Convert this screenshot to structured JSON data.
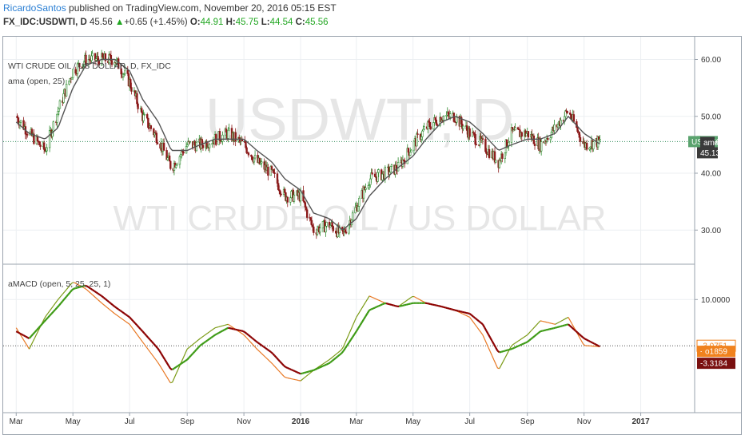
{
  "header": {
    "author": "RicardoSantos",
    "published": " published on TradingView.com, November 20, 2016 05:15 EST",
    "symbol": "FX_IDC:USDWTI, D",
    "last": "45.56",
    "change": "+0.65 (+1.45%)",
    "open_label": "O:",
    "open": "44.91",
    "high_label": "H:",
    "high": "45.75",
    "low_label": "L:",
    "low": "44.54",
    "close_label": "C:",
    "close": "45.56"
  },
  "colors": {
    "up_candle": "#2e8b2e",
    "down_candle": "#8b1a1a",
    "ama_line": "#555555",
    "macd_green": "#3c9a14",
    "macd_red": "#8b0000",
    "macd_orange": "#e87722",
    "macd_olive": "#7a9a14",
    "current_price_line": "#2e8b57",
    "label_green": "#5aa36e",
    "label_dark": "#3a3a3a",
    "label_orange": "#f0821e",
    "label_darkred": "#7a1010"
  },
  "watermark": {
    "symbol": "USDWTI, D",
    "description": "WTI CRUDE OIL / US DOLLAR"
  },
  "chart_data": [
    {
      "type": "candlestick",
      "title": "WTI CRUDE OIL / US DOLLAR, D, FX_IDC",
      "indicator_label": "ama (open, 25)",
      "ylim": [
        24,
        64
      ],
      "y_ticks": [
        "60.00",
        "50.00",
        "40.00",
        "30.00"
      ],
      "x": [
        "2015-03-01",
        "2015-03-15",
        "2015-04-01",
        "2015-04-15",
        "2015-05-01",
        "2015-05-15",
        "2015-06-01",
        "2015-06-15",
        "2015-07-01",
        "2015-07-15",
        "2015-08-01",
        "2015-08-15",
        "2015-09-01",
        "2015-09-15",
        "2015-10-01",
        "2015-10-15",
        "2015-11-01",
        "2015-11-15",
        "2015-12-01",
        "2015-12-15",
        "2016-01-01",
        "2016-01-15",
        "2016-02-01",
        "2016-02-15",
        "2016-03-01",
        "2016-03-15",
        "2016-04-01",
        "2016-04-15",
        "2016-05-01",
        "2016-05-15",
        "2016-06-01",
        "2016-06-15",
        "2016-07-01",
        "2016-07-15",
        "2016-08-01",
        "2016-08-15",
        "2016-09-01",
        "2016-09-15",
        "2016-10-01",
        "2016-10-15",
        "2016-11-01",
        "2016-11-18"
      ],
      "price": [
        50,
        47,
        44,
        51,
        58,
        60,
        60,
        60,
        56,
        50,
        46,
        41,
        45,
        45,
        46,
        47,
        45,
        42,
        40,
        36,
        36,
        30,
        31,
        29,
        34,
        39,
        40,
        41,
        45,
        48,
        50,
        50,
        47,
        45,
        42,
        47,
        47,
        45,
        48,
        51,
        45,
        45.56
      ],
      "ama": [
        49,
        47,
        46,
        48,
        55,
        59,
        60,
        60,
        58,
        53,
        49,
        44,
        44,
        45,
        46,
        46,
        46,
        44,
        42,
        39,
        37,
        33,
        32,
        30,
        32,
        36,
        39,
        41,
        43,
        46,
        49,
        50,
        49,
        47,
        44,
        45,
        46,
        46,
        47,
        50,
        47,
        45.13
      ],
      "current_price_label": "45.56",
      "ama_value_label": "45.13",
      "price_tag_sym": "USI",
      "price_tag_ind": "ama"
    },
    {
      "type": "line",
      "indicator_label": "aMACD (open, 5, 25, 25, 1)",
      "ylim": [
        -22,
        20
      ],
      "y_ticks": [
        "10.0000"
      ],
      "zero_line_value": -3.0751,
      "x": [
        "2015-03-01",
        "2015-03-15",
        "2015-04-01",
        "2015-04-15",
        "2015-05-01",
        "2015-05-15",
        "2015-06-01",
        "2015-06-15",
        "2015-07-01",
        "2015-07-15",
        "2015-08-01",
        "2015-08-15",
        "2015-09-01",
        "2015-09-15",
        "2015-10-01",
        "2015-10-15",
        "2015-11-01",
        "2015-11-15",
        "2015-12-01",
        "2015-12-15",
        "2016-01-01",
        "2016-01-15",
        "2016-02-01",
        "2016-02-15",
        "2016-03-01",
        "2016-03-15",
        "2016-04-01",
        "2016-04-15",
        "2016-05-01",
        "2016-05-15",
        "2016-06-01",
        "2016-06-15",
        "2016-07-01",
        "2016-07-15",
        "2016-08-01",
        "2016-08-15",
        "2016-09-01",
        "2016-09-15",
        "2016-10-01",
        "2016-10-15",
        "2016-11-01",
        "2016-11-18"
      ],
      "fast": [
        2,
        -4,
        5,
        10,
        15,
        13,
        9,
        6,
        3,
        -2,
        -8,
        -14,
        -4,
        -1,
        2,
        3,
        0,
        -4,
        -8,
        -12,
        -13,
        -10,
        -7,
        -4,
        5,
        11,
        9,
        8,
        11,
        9,
        8,
        7,
        5,
        0,
        -10,
        -3,
        0,
        4,
        3,
        5,
        -3,
        -3.3184
      ],
      "signal": [
        1,
        -1,
        4,
        8,
        13,
        14,
        11,
        8,
        5,
        1,
        -4,
        -10,
        -7,
        -3,
        0,
        2,
        1,
        -2,
        -5,
        -9,
        -11,
        -10,
        -8,
        -5,
        1,
        7,
        9,
        8,
        9,
        9,
        8,
        7,
        6,
        3,
        -5,
        -4,
        -2,
        1,
        2,
        3,
        -1,
        -3.2859
      ],
      "value_labels": [
        "-3.0751",
        "-3.2859",
        "-3.3184"
      ],
      "tag_text": "o1"
    }
  ],
  "x_axis": {
    "ticks": [
      "Mar",
      "May",
      "Jul",
      "Sep",
      "Nov",
      "2016",
      "Mar",
      "May",
      "Jul",
      "Sep",
      "Nov",
      "2017"
    ],
    "tick_dates": [
      "2015-03-01",
      "2015-05-01",
      "2015-07-01",
      "2015-09-01",
      "2015-11-01",
      "2016-01-01",
      "2016-03-01",
      "2016-05-01",
      "2016-07-01",
      "2016-09-01",
      "2016-11-01",
      "2017-01-01"
    ]
  }
}
